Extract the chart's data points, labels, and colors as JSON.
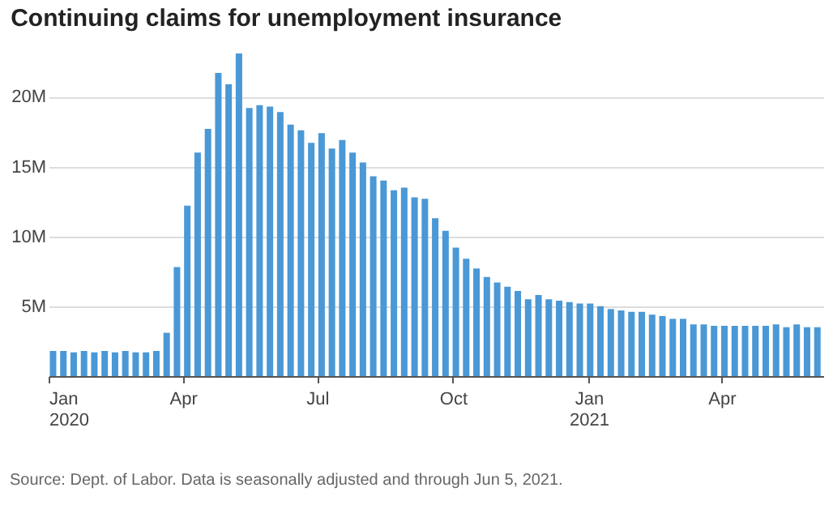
{
  "chart_data": {
    "type": "bar",
    "title": "Continuing claims for unemployment insurance",
    "x": [
      "2020-01-04",
      "2020-01-11",
      "2020-01-18",
      "2020-01-25",
      "2020-02-01",
      "2020-02-08",
      "2020-02-15",
      "2020-02-22",
      "2020-02-29",
      "2020-03-07",
      "2020-03-14",
      "2020-03-21",
      "2020-03-28",
      "2020-04-04",
      "2020-04-11",
      "2020-04-18",
      "2020-04-25",
      "2020-05-02",
      "2020-05-09",
      "2020-05-16",
      "2020-05-23",
      "2020-05-30",
      "2020-06-06",
      "2020-06-13",
      "2020-06-20",
      "2020-06-27",
      "2020-07-04",
      "2020-07-11",
      "2020-07-18",
      "2020-07-25",
      "2020-08-01",
      "2020-08-08",
      "2020-08-15",
      "2020-08-22",
      "2020-08-29",
      "2020-09-05",
      "2020-09-12",
      "2020-09-19",
      "2020-09-26",
      "2020-10-03",
      "2020-10-10",
      "2020-10-17",
      "2020-10-24",
      "2020-10-31",
      "2020-11-07",
      "2020-11-14",
      "2020-11-21",
      "2020-11-28",
      "2020-12-05",
      "2020-12-12",
      "2020-12-19",
      "2020-12-26",
      "2021-01-02",
      "2021-01-09",
      "2021-01-16",
      "2021-01-23",
      "2021-01-30",
      "2021-02-06",
      "2021-02-13",
      "2021-02-20",
      "2021-02-27",
      "2021-03-06",
      "2021-03-13",
      "2021-03-20",
      "2021-03-27",
      "2021-04-03",
      "2021-04-10",
      "2021-04-17",
      "2021-04-24",
      "2021-05-01",
      "2021-05-08",
      "2021-05-15",
      "2021-05-22",
      "2021-05-29",
      "2021-06-05"
    ],
    "values": [
      1.8,
      1.8,
      1.7,
      1.8,
      1.7,
      1.8,
      1.7,
      1.8,
      1.7,
      1.7,
      1.8,
      3.1,
      7.8,
      12.2,
      16.0,
      17.7,
      21.7,
      20.9,
      23.1,
      19.2,
      19.4,
      19.3,
      18.9,
      18.0,
      17.6,
      16.7,
      17.4,
      16.3,
      16.9,
      16.0,
      15.3,
      14.3,
      14.0,
      13.3,
      13.5,
      12.8,
      12.7,
      11.3,
      10.4,
      9.2,
      8.4,
      7.7,
      7.1,
      6.7,
      6.4,
      6.1,
      5.5,
      5.8,
      5.5,
      5.4,
      5.3,
      5.2,
      5.2,
      5.0,
      4.8,
      4.7,
      4.6,
      4.6,
      4.4,
      4.3,
      4.1,
      4.1,
      3.7,
      3.7,
      3.6,
      3.6,
      3.6,
      3.6,
      3.6,
      3.6,
      3.7,
      3.5,
      3.7,
      3.5,
      3.5
    ],
    "color": "#4a98d6",
    "xlim": [
      "2020-01-01",
      "2021-06-09"
    ],
    "xticks": [
      {
        "value": "2020-01-01",
        "label": "Jan\n2020"
      },
      {
        "value": "2020-04-01",
        "label": "Apr"
      },
      {
        "value": "2020-07-01",
        "label": "Jul"
      },
      {
        "value": "2020-10-01",
        "label": "Oct"
      },
      {
        "value": "2021-01-01",
        "label": "Jan\n2021"
      },
      {
        "value": "2021-04-01",
        "label": "Apr"
      }
    ],
    "ylim": [
      0,
      23.1
    ],
    "yticks": [
      {
        "value": 5,
        "label": "5M"
      },
      {
        "value": 10,
        "label": "10M"
      },
      {
        "value": 15,
        "label": "15M"
      },
      {
        "value": 20,
        "label": "20M"
      }
    ],
    "grid": "y",
    "annotations": [
      "Source: Dept. of Labor. Data is seasonally adjusted and through Jun 5, 2021."
    ]
  }
}
